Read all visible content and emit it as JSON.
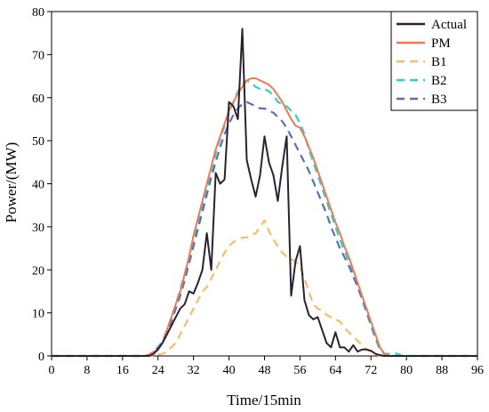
{
  "chart_data": {
    "type": "line",
    "xlabel": "Time/15min",
    "ylabel": "Power/(MW)",
    "xlim": [
      0,
      96
    ],
    "ylim": [
      0,
      80
    ],
    "xticks": [
      0,
      8,
      16,
      24,
      32,
      40,
      48,
      56,
      64,
      72,
      80,
      88,
      96
    ],
    "yticks": [
      0,
      10,
      20,
      30,
      40,
      50,
      60,
      70,
      80
    ],
    "grid": false,
    "legend_position": "top-right",
    "series": [
      {
        "name": "Actual",
        "color": "#2b2130",
        "dash": "solid",
        "points": [
          [
            0,
            0
          ],
          [
            22,
            0
          ],
          [
            23,
            0.5
          ],
          [
            24,
            1.5
          ],
          [
            25,
            3
          ],
          [
            26,
            5
          ],
          [
            27,
            7
          ],
          [
            28,
            9
          ],
          [
            29,
            11
          ],
          [
            30,
            12
          ],
          [
            31,
            15
          ],
          [
            32,
            14.5
          ],
          [
            33,
            17
          ],
          [
            34,
            20
          ],
          [
            35,
            28.5
          ],
          [
            36,
            20
          ],
          [
            37,
            42.5
          ],
          [
            38,
            40
          ],
          [
            39,
            41
          ],
          [
            40,
            59
          ],
          [
            41,
            58
          ],
          [
            42,
            55
          ],
          [
            43,
            76
          ],
          [
            44,
            45.5
          ],
          [
            45,
            41
          ],
          [
            46,
            37
          ],
          [
            47,
            42
          ],
          [
            48,
            51
          ],
          [
            49,
            45
          ],
          [
            50,
            42
          ],
          [
            51,
            36
          ],
          [
            52,
            44
          ],
          [
            53,
            51
          ],
          [
            54,
            14
          ],
          [
            55,
            22
          ],
          [
            56,
            25.5
          ],
          [
            57,
            13
          ],
          [
            58,
            9.5
          ],
          [
            59,
            8.5
          ],
          [
            60,
            9
          ],
          [
            61,
            6
          ],
          [
            62,
            3
          ],
          [
            63,
            2
          ],
          [
            64,
            5.5
          ],
          [
            65,
            2
          ],
          [
            66,
            2
          ],
          [
            67,
            1
          ],
          [
            68,
            2.5
          ],
          [
            69,
            1
          ],
          [
            70,
            1.5
          ],
          [
            71,
            1.5
          ],
          [
            72,
            1.2
          ],
          [
            73,
            0.5
          ],
          [
            74,
            0.2
          ],
          [
            75,
            0
          ],
          [
            96,
            0
          ]
        ]
      },
      {
        "name": "PM",
        "color": "#ef7a55",
        "dash": "solid",
        "points": [
          [
            0,
            0
          ],
          [
            21,
            0
          ],
          [
            22,
            0.3
          ],
          [
            23,
            1
          ],
          [
            24,
            1.5
          ],
          [
            25,
            3
          ],
          [
            26,
            6
          ],
          [
            27,
            9
          ],
          [
            28,
            12
          ],
          [
            29,
            15
          ],
          [
            30,
            19
          ],
          [
            31,
            23
          ],
          [
            32,
            28
          ],
          [
            33,
            32
          ],
          [
            34,
            36
          ],
          [
            35,
            40
          ],
          [
            36,
            44
          ],
          [
            37,
            48
          ],
          [
            38,
            51
          ],
          [
            39,
            54
          ],
          [
            40,
            57
          ],
          [
            41,
            59
          ],
          [
            42,
            61
          ],
          [
            43,
            62.5
          ],
          [
            44,
            64
          ],
          [
            45,
            64.5
          ],
          [
            46,
            64.5
          ],
          [
            47,
            64
          ],
          [
            48,
            63.5
          ],
          [
            49,
            63
          ],
          [
            50,
            62
          ],
          [
            51,
            60.5
          ],
          [
            52,
            59
          ],
          [
            53,
            57
          ],
          [
            54,
            55
          ],
          [
            55,
            53.5
          ],
          [
            56,
            53
          ],
          [
            57,
            51
          ],
          [
            58,
            48.5
          ],
          [
            59,
            46
          ],
          [
            60,
            43
          ],
          [
            61,
            40
          ],
          [
            62,
            37
          ],
          [
            63,
            34
          ],
          [
            64,
            31
          ],
          [
            65,
            28.5
          ],
          [
            66,
            25.5
          ],
          [
            67,
            23
          ],
          [
            68,
            20
          ],
          [
            69,
            17
          ],
          [
            70,
            14
          ],
          [
            71,
            11
          ],
          [
            72,
            8
          ],
          [
            73,
            5
          ],
          [
            74,
            2
          ],
          [
            75,
            0.5
          ],
          [
            76,
            0
          ],
          [
            96,
            0
          ]
        ]
      },
      {
        "name": "B1",
        "color": "#f5be6a",
        "dash": "dashed",
        "points": [
          [
            0,
            0
          ],
          [
            23,
            0
          ],
          [
            24,
            0.3
          ],
          [
            25,
            0.5
          ],
          [
            26,
            1
          ],
          [
            27,
            2
          ],
          [
            28,
            3
          ],
          [
            29,
            5
          ],
          [
            30,
            7
          ],
          [
            31,
            9
          ],
          [
            32,
            11
          ],
          [
            33,
            13
          ],
          [
            34,
            15
          ],
          [
            35,
            16
          ],
          [
            36,
            18
          ],
          [
            37,
            20
          ],
          [
            38,
            22
          ],
          [
            39,
            24
          ],
          [
            40,
            25.5
          ],
          [
            41,
            26.5
          ],
          [
            42,
            27
          ],
          [
            43,
            27.5
          ],
          [
            44,
            27.5
          ],
          [
            45,
            28
          ],
          [
            46,
            28.5
          ],
          [
            47,
            30
          ],
          [
            48,
            31.5
          ],
          [
            49,
            29
          ],
          [
            50,
            27
          ],
          [
            51,
            25.5
          ],
          [
            52,
            24
          ],
          [
            53,
            23
          ],
          [
            54,
            22.5
          ],
          [
            55,
            22
          ],
          [
            56,
            21
          ],
          [
            57,
            18
          ],
          [
            58,
            15
          ],
          [
            59,
            12
          ],
          [
            60,
            11
          ],
          [
            61,
            10.5
          ],
          [
            62,
            9.5
          ],
          [
            63,
            9
          ],
          [
            64,
            8.5
          ],
          [
            65,
            8
          ],
          [
            66,
            6.5
          ],
          [
            67,
            5.5
          ],
          [
            68,
            4.5
          ],
          [
            69,
            3.5
          ],
          [
            70,
            2.5
          ],
          [
            71,
            1.5
          ],
          [
            72,
            1
          ],
          [
            73,
            0.5
          ],
          [
            74,
            0
          ],
          [
            96,
            0
          ]
        ]
      },
      {
        "name": "B2",
        "color": "#2ed0c8",
        "dash": "dashed",
        "points": [
          [
            0,
            0
          ],
          [
            21,
            0
          ],
          [
            22,
            0.3
          ],
          [
            23,
            1
          ],
          [
            24,
            2
          ],
          [
            25,
            3.5
          ],
          [
            26,
            6
          ],
          [
            27,
            9
          ],
          [
            28,
            12
          ],
          [
            29,
            15.5
          ],
          [
            30,
            19
          ],
          [
            31,
            23
          ],
          [
            32,
            27
          ],
          [
            33,
            31
          ],
          [
            34,
            35
          ],
          [
            35,
            39
          ],
          [
            36,
            43
          ],
          [
            37,
            47
          ],
          [
            38,
            50.5
          ],
          [
            39,
            53.5
          ],
          [
            40,
            56.5
          ],
          [
            41,
            59
          ],
          [
            42,
            61.5
          ],
          [
            43,
            63
          ],
          [
            44,
            64
          ],
          [
            45,
            63.5
          ],
          [
            46,
            62.5
          ],
          [
            47,
            62
          ],
          [
            48,
            62
          ],
          [
            49,
            61.5
          ],
          [
            50,
            60.5
          ],
          [
            51,
            59
          ],
          [
            52,
            58.5
          ],
          [
            53,
            58
          ],
          [
            54,
            57
          ],
          [
            55,
            56
          ],
          [
            56,
            54
          ],
          [
            57,
            51.5
          ],
          [
            58,
            48
          ],
          [
            59,
            45
          ],
          [
            60,
            42
          ],
          [
            61,
            39
          ],
          [
            62,
            36
          ],
          [
            63,
            33
          ],
          [
            64,
            30
          ],
          [
            65,
            27
          ],
          [
            66,
            24.5
          ],
          [
            67,
            22
          ],
          [
            68,
            19
          ],
          [
            69,
            16
          ],
          [
            70,
            13
          ],
          [
            71,
            10
          ],
          [
            72,
            7
          ],
          [
            73,
            4
          ],
          [
            74,
            1.5
          ],
          [
            75,
            0.5
          ],
          [
            76,
            0.5
          ],
          [
            77,
            0.7
          ],
          [
            78,
            0.5
          ],
          [
            79,
            0
          ],
          [
            96,
            0
          ]
        ]
      },
      {
        "name": "B3",
        "color": "#5a70b5",
        "dash": "dashed",
        "points": [
          [
            0,
            0
          ],
          [
            21,
            0
          ],
          [
            22,
            0.3
          ],
          [
            23,
            1
          ],
          [
            24,
            2
          ],
          [
            25,
            3
          ],
          [
            26,
            5
          ],
          [
            27,
            8
          ],
          [
            28,
            11
          ],
          [
            29,
            14
          ],
          [
            30,
            17.5
          ],
          [
            31,
            21.5
          ],
          [
            32,
            25.5
          ],
          [
            33,
            29.5
          ],
          [
            34,
            33.5
          ],
          [
            35,
            37.5
          ],
          [
            36,
            41.5
          ],
          [
            37,
            45
          ],
          [
            38,
            48.5
          ],
          [
            39,
            51.5
          ],
          [
            40,
            54
          ],
          [
            41,
            56
          ],
          [
            42,
            57.5
          ],
          [
            43,
            58.5
          ],
          [
            44,
            59
          ],
          [
            45,
            58.5
          ],
          [
            46,
            58
          ],
          [
            47,
            57.5
          ],
          [
            48,
            57.5
          ],
          [
            49,
            57
          ],
          [
            50,
            56.5
          ],
          [
            51,
            55.5
          ],
          [
            52,
            54.5
          ],
          [
            53,
            53
          ],
          [
            54,
            51
          ],
          [
            55,
            49
          ],
          [
            56,
            47
          ],
          [
            57,
            45
          ],
          [
            58,
            43
          ],
          [
            59,
            40.5
          ],
          [
            60,
            38
          ],
          [
            61,
            35.5
          ],
          [
            62,
            33
          ],
          [
            63,
            30
          ],
          [
            64,
            27.5
          ],
          [
            65,
            25
          ],
          [
            66,
            23
          ],
          [
            67,
            21
          ],
          [
            68,
            18.5
          ],
          [
            69,
            16
          ],
          [
            70,
            13.5
          ],
          [
            71,
            10.5
          ],
          [
            72,
            7.5
          ],
          [
            73,
            4.5
          ],
          [
            74,
            2
          ],
          [
            75,
            0.5
          ],
          [
            76,
            0
          ],
          [
            96,
            0
          ]
        ]
      }
    ]
  }
}
